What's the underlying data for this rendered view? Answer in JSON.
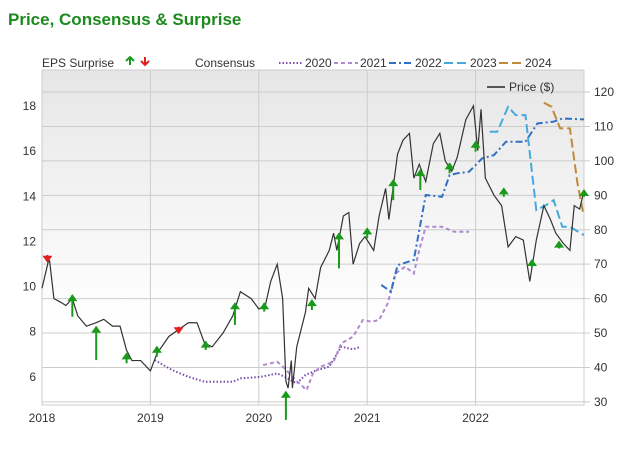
{
  "title": "Price, Consensus & Surprise",
  "chart_data": {
    "type": "line",
    "title": "Price, Consensus & Surprise",
    "xlim": [
      2018,
      2023
    ],
    "x_ticks": [
      "2018",
      "2019",
      "2020",
      "2021",
      "2022"
    ],
    "x_tick_values": [
      2018,
      2019,
      2020,
      2021,
      2022
    ],
    "y_left": {
      "ticks": [
        6,
        8,
        10,
        12,
        14,
        16,
        18
      ],
      "lim": [
        4.75,
        19.6
      ]
    },
    "y_right": {
      "ticks": [
        30,
        40,
        50,
        60,
        70,
        80,
        90,
        100,
        110,
        120
      ],
      "lim": [
        29.1,
        126.4
      ]
    },
    "grid": true,
    "legend": {
      "eps_label": "EPS Surprise",
      "consensus_label": "Consensus",
      "price_label": "Price ($)",
      "placement": "top"
    },
    "colors": {
      "up": "#1a9a1a",
      "down": "#e02020",
      "price": "#333333",
      "2020": "#7b4fa8",
      "2021": "#b08ad0",
      "2022": "#2f6fc4",
      "2023": "#45a9de",
      "2024": "#c08a3a"
    },
    "price": {
      "name": "Price ($)",
      "axis": "right",
      "points": [
        [
          2018.0,
          63
        ],
        [
          2018.06,
          71
        ],
        [
          2018.07,
          71
        ],
        [
          2018.11,
          60
        ],
        [
          2018.17,
          59
        ],
        [
          2018.22,
          58
        ],
        [
          2018.28,
          60
        ],
        [
          2018.33,
          55
        ],
        [
          2018.41,
          52
        ],
        [
          2018.5,
          53
        ],
        [
          2018.57,
          54
        ],
        [
          2018.65,
          52
        ],
        [
          2018.72,
          52
        ],
        [
          2018.78,
          45
        ],
        [
          2018.83,
          42
        ],
        [
          2018.91,
          42
        ],
        [
          2019.0,
          39
        ],
        [
          2019.06,
          44
        ],
        [
          2019.17,
          49
        ],
        [
          2019.26,
          51
        ],
        [
          2019.35,
          53
        ],
        [
          2019.43,
          53
        ],
        [
          2019.5,
          47
        ],
        [
          2019.57,
          46
        ],
        [
          2019.67,
          50
        ],
        [
          2019.76,
          55
        ],
        [
          2019.83,
          62
        ],
        [
          2019.93,
          60
        ],
        [
          2020.0,
          57
        ],
        [
          2020.06,
          58
        ],
        [
          2020.11,
          65
        ],
        [
          2020.17,
          70
        ],
        [
          2020.22,
          60
        ],
        [
          2020.25,
          36
        ],
        [
          2020.27,
          34
        ],
        [
          2020.3,
          42
        ],
        [
          2020.31,
          34
        ],
        [
          2020.35,
          46
        ],
        [
          2020.43,
          56
        ],
        [
          2020.46,
          63
        ],
        [
          2020.52,
          60
        ],
        [
          2020.57,
          69
        ],
        [
          2020.65,
          74
        ],
        [
          2020.69,
          79
        ],
        [
          2020.72,
          74
        ],
        [
          2020.78,
          84
        ],
        [
          2020.83,
          85
        ],
        [
          2020.87,
          70
        ],
        [
          2020.93,
          76
        ],
        [
          2020.98,
          78
        ],
        [
          2021.06,
          74
        ],
        [
          2021.11,
          84
        ],
        [
          2021.17,
          92
        ],
        [
          2021.2,
          83
        ],
        [
          2021.28,
          102
        ],
        [
          2021.33,
          106
        ],
        [
          2021.39,
          108
        ],
        [
          2021.43,
          95
        ],
        [
          2021.48,
          99
        ],
        [
          2021.54,
          94
        ],
        [
          2021.61,
          105
        ],
        [
          2021.67,
          108
        ],
        [
          2021.72,
          100
        ],
        [
          2021.78,
          97
        ],
        [
          2021.83,
          101
        ],
        [
          2021.91,
          112
        ],
        [
          2021.98,
          116
        ],
        [
          2022.02,
          103
        ],
        [
          2022.05,
          115
        ],
        [
          2022.09,
          95
        ],
        [
          2022.17,
          90
        ],
        [
          2022.24,
          87
        ],
        [
          2022.3,
          75
        ],
        [
          2022.37,
          78
        ],
        [
          2022.44,
          77
        ],
        [
          2022.5,
          65
        ],
        [
          2022.56,
          77
        ],
        [
          2022.63,
          87
        ],
        [
          2022.69,
          83
        ],
        [
          2022.74,
          79
        ],
        [
          2022.81,
          76
        ],
        [
          2022.87,
          74
        ],
        [
          2022.91,
          87
        ],
        [
          2022.96,
          86
        ],
        [
          2022.99,
          90
        ]
      ]
    },
    "consensus": [
      {
        "name": "2020",
        "style": "dotted",
        "points": [
          [
            2019.04,
            6.74
          ],
          [
            2019.2,
            6.3
          ],
          [
            2019.35,
            6.0
          ],
          [
            2019.5,
            5.78
          ],
          [
            2019.76,
            5.78
          ],
          [
            2019.83,
            5.93
          ],
          [
            2020.02,
            6.0
          ],
          [
            2020.17,
            6.15
          ],
          [
            2020.24,
            6.0
          ],
          [
            2020.35,
            5.71
          ],
          [
            2020.43,
            6.08
          ],
          [
            2020.54,
            6.3
          ],
          [
            2020.65,
            6.45
          ],
          [
            2020.76,
            7.33
          ],
          [
            2020.87,
            7.22
          ],
          [
            2020.94,
            7.33
          ]
        ]
      },
      {
        "name": "2021",
        "style": "short-dash",
        "points": [
          [
            2020.04,
            6.52
          ],
          [
            2020.17,
            6.67
          ],
          [
            2020.24,
            6.37
          ],
          [
            2020.31,
            6.0
          ],
          [
            2020.44,
            5.41
          ],
          [
            2020.5,
            6.15
          ],
          [
            2020.57,
            6.45
          ],
          [
            2020.69,
            6.67
          ],
          [
            2020.76,
            7.48
          ],
          [
            2020.87,
            7.78
          ],
          [
            2020.96,
            8.52
          ],
          [
            2021.04,
            8.44
          ],
          [
            2021.11,
            8.52
          ],
          [
            2021.19,
            9.26
          ],
          [
            2021.26,
            10.58
          ],
          [
            2021.35,
            10.88
          ],
          [
            2021.43,
            10.58
          ],
          [
            2021.48,
            11.62
          ],
          [
            2021.54,
            12.65
          ],
          [
            2021.69,
            12.65
          ],
          [
            2021.8,
            12.43
          ],
          [
            2021.94,
            12.43
          ]
        ]
      },
      {
        "name": "2022",
        "style": "dash-dot",
        "points": [
          [
            2021.13,
            10.07
          ],
          [
            2021.22,
            9.77
          ],
          [
            2021.28,
            10.95
          ],
          [
            2021.43,
            11.18
          ],
          [
            2021.54,
            14.06
          ],
          [
            2021.69,
            13.98
          ],
          [
            2021.76,
            14.94
          ],
          [
            2021.83,
            15.02
          ],
          [
            2021.94,
            15.09
          ],
          [
            2022.06,
            15.68
          ],
          [
            2022.17,
            15.83
          ],
          [
            2022.28,
            16.42
          ],
          [
            2022.46,
            16.42
          ],
          [
            2022.57,
            17.23
          ],
          [
            2022.72,
            17.31
          ],
          [
            2022.8,
            17.45
          ],
          [
            2023.0,
            17.41
          ]
        ]
      },
      {
        "name": "2023",
        "style": "long-dash",
        "points": [
          [
            2022.13,
            16.86
          ],
          [
            2022.2,
            16.86
          ],
          [
            2022.3,
            17.97
          ],
          [
            2022.37,
            17.6
          ],
          [
            2022.46,
            17.6
          ],
          [
            2022.56,
            13.39
          ],
          [
            2022.65,
            13.61
          ],
          [
            2022.72,
            13.83
          ],
          [
            2022.8,
            12.65
          ],
          [
            2022.87,
            12.65
          ],
          [
            2023.0,
            12.28
          ]
        ]
      },
      {
        "name": "2024",
        "style": "long-dash",
        "points": [
          [
            2022.63,
            18.15
          ],
          [
            2022.7,
            17.97
          ],
          [
            2022.78,
            17.01
          ],
          [
            2022.87,
            17.01
          ],
          [
            2022.94,
            14.57
          ],
          [
            2022.99,
            13.32
          ]
        ]
      }
    ],
    "surprises": [
      {
        "x": 2018.05,
        "dir": "down",
        "head": 11.1,
        "tail": 11.4
      },
      {
        "x": 2018.28,
        "dir": "up",
        "head": 9.62,
        "tail": 8.66
      },
      {
        "x": 2018.5,
        "dir": "up",
        "head": 8.22,
        "tail": 6.74
      },
      {
        "x": 2018.78,
        "dir": "up",
        "head": 7.04,
        "tail": 6.6
      },
      {
        "x": 2019.06,
        "dir": "up",
        "head": 7.33,
        "tail": 6.89
      },
      {
        "x": 2019.26,
        "dir": "down",
        "head": 7.93,
        "tail": 8.22
      },
      {
        "x": 2019.51,
        "dir": "up",
        "head": 7.56,
        "tail": 7.19
      },
      {
        "x": 2019.78,
        "dir": "up",
        "head": 9.26,
        "tail": 8.3
      },
      {
        "x": 2020.05,
        "dir": "up",
        "head": 9.26,
        "tail": 8.89
      },
      {
        "x": 2020.25,
        "dir": "up",
        "head": 5.34,
        "tail": 4.09
      },
      {
        "x": 2020.49,
        "dir": "up",
        "head": 9.4,
        "tail": 8.96
      },
      {
        "x": 2020.74,
        "dir": "up",
        "head": 12.36,
        "tail": 10.81
      },
      {
        "x": 2021.0,
        "dir": "up",
        "head": 12.58,
        "tail": 12.14
      },
      {
        "x": 2021.24,
        "dir": "up",
        "head": 14.72,
        "tail": 13.83
      },
      {
        "x": 2021.49,
        "dir": "up",
        "head": 15.16,
        "tail": 14.28
      },
      {
        "x": 2021.76,
        "dir": "up",
        "head": 15.46,
        "tail": 15.02
      },
      {
        "x": 2022.0,
        "dir": "up",
        "head": 16.42,
        "tail": 15.98
      },
      {
        "x": 2022.26,
        "dir": "up",
        "head": 14.35,
        "tail": 13.98
      },
      {
        "x": 2022.52,
        "dir": "up",
        "head": 11.18,
        "tail": 10.88
      },
      {
        "x": 2022.77,
        "dir": "up",
        "head": 11.99,
        "tail": 11.69
      },
      {
        "x": 2023.0,
        "dir": "up",
        "head": 14.28,
        "tail": 13.98
      }
    ]
  }
}
